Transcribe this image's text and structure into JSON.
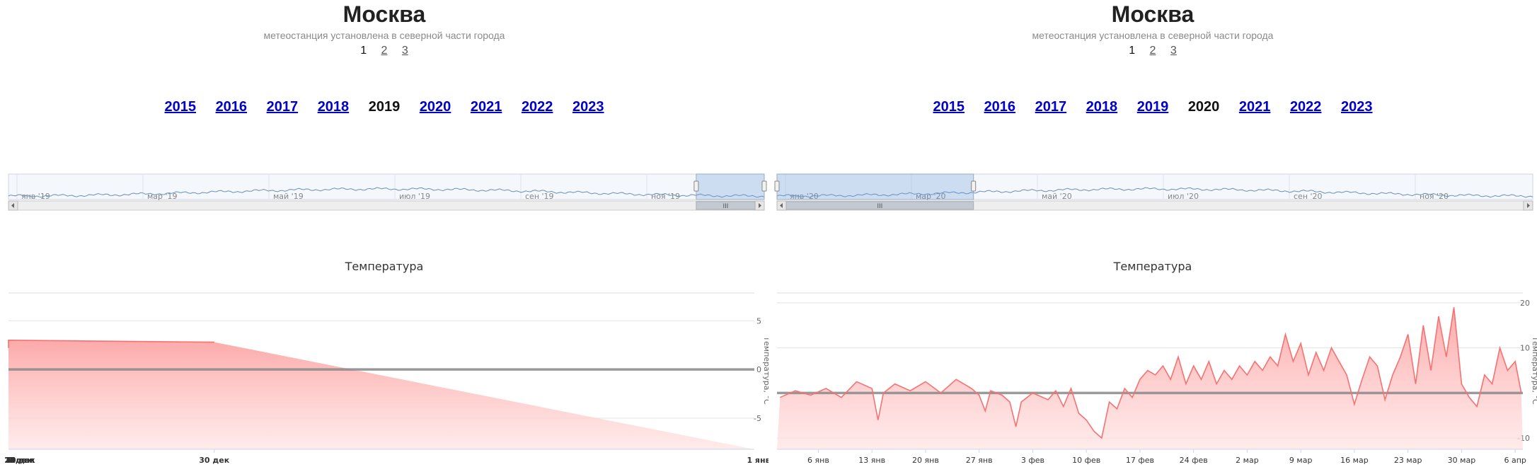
{
  "panels": [
    {
      "city": "Москва",
      "subtitle": "метеостанция установлена в северной части города",
      "pager": [
        {
          "label": "1",
          "active": true
        },
        {
          "label": "2",
          "active": false
        },
        {
          "label": "3",
          "active": false
        }
      ],
      "years": [
        {
          "label": "2015",
          "active": false
        },
        {
          "label": "2016",
          "active": false
        },
        {
          "label": "2017",
          "active": false
        },
        {
          "label": "2018",
          "active": false
        },
        {
          "label": "2019",
          "active": true
        },
        {
          "label": "2020",
          "active": false
        },
        {
          "label": "2021",
          "active": false
        },
        {
          "label": "2022",
          "active": false
        },
        {
          "label": "2023",
          "active": false
        }
      ],
      "navigator": {
        "labels": [
          "янв '19",
          "мар '19",
          "май '19",
          "июл '19",
          "сен '19",
          "ноя '19"
        ],
        "selection_fraction": [
          0.91,
          1.0
        ],
        "handle_label": "III"
      },
      "chart_data": {
        "type": "area",
        "title": "Температура",
        "ylabel": "Температура, °C",
        "ylim": [
          -8.2,
          8.0
        ],
        "yticks": [
          5,
          0,
          -5
        ],
        "x_tick_labels": [
          "30 ноя",
          "2 дек",
          "4 дек",
          "6 дек",
          "8 дек",
          "10 дек",
          "12 дек",
          "14 дек",
          "16 дек",
          "18 дек",
          "20 дек",
          "22 дек",
          "24 дек",
          "26 дек",
          "28 дек",
          "30 дек",
          "1 янв"
        ],
        "x_range_days": [
          29.6,
          31.05
        ],
        "x_tick_days": [
          0,
          2,
          4,
          6,
          8,
          10,
          12,
          14,
          16,
          18,
          20,
          22,
          24,
          26,
          28,
          30,
          32
        ],
        "series": [
          {
            "color": "#f87171",
            "points": [
              [
                -0.4,
                1.8
              ],
              [
                0.0,
                3.0
              ],
              [
                0.3,
                2.6
              ],
              [
                0.6,
                1.4
              ],
              [
                0.9,
                3.4
              ],
              [
                1.2,
                4.0
              ],
              [
                1.5,
                2.2
              ],
              [
                1.7,
                -0.5
              ],
              [
                2.0,
                -2.0
              ],
              [
                2.3,
                -2.5
              ],
              [
                2.6,
                -1.8
              ],
              [
                2.9,
                -4.0
              ],
              [
                3.2,
                -4.8
              ],
              [
                3.4,
                -6.0
              ],
              [
                3.6,
                -3.0
              ],
              [
                4.0,
                -2.8
              ],
              [
                4.4,
                -2.8
              ],
              [
                4.8,
                -2.2
              ],
              [
                5.1,
                -1.8
              ],
              [
                5.3,
                -0.5
              ],
              [
                5.6,
                1.0
              ],
              [
                5.9,
                2.5
              ],
              [
                6.2,
                3.5
              ],
              [
                6.5,
                3.0
              ],
              [
                6.8,
                2.0
              ],
              [
                7.1,
                2.5
              ],
              [
                7.4,
                1.2
              ],
              [
                7.7,
                1.5
              ],
              [
                8.0,
                2.8
              ],
              [
                8.3,
                2.0
              ],
              [
                8.6,
                2.6
              ],
              [
                8.9,
                5.0
              ],
              [
                9.2,
                4.0
              ],
              [
                9.5,
                5.0
              ],
              [
                9.8,
                3.2
              ],
              [
                10.1,
                5.0
              ],
              [
                10.4,
                3.8
              ],
              [
                10.7,
                4.8
              ],
              [
                11.0,
                2.2
              ],
              [
                11.3,
                2.8
              ],
              [
                11.6,
                0.5
              ],
              [
                11.9,
                1.6
              ],
              [
                12.2,
                2.5
              ],
              [
                12.5,
                3.5
              ],
              [
                12.8,
                1.8
              ],
              [
                13.1,
                2.2
              ],
              [
                13.4,
                1.0
              ],
              [
                13.7,
                0.0
              ],
              [
                14.0,
                -1.2
              ],
              [
                14.3,
                -0.5
              ],
              [
                14.6,
                0.8
              ],
              [
                14.9,
                2.5
              ],
              [
                15.2,
                3.5
              ],
              [
                15.5,
                3.0
              ],
              [
                15.8,
                1.8
              ],
              [
                16.1,
                2.6
              ],
              [
                16.4,
                4.0
              ],
              [
                16.7,
                6.0
              ],
              [
                17.0,
                4.5
              ],
              [
                17.3,
                5.2
              ],
              [
                17.6,
                3.0
              ],
              [
                17.9,
                2.8
              ],
              [
                18.2,
                1.2
              ],
              [
                18.5,
                -0.2
              ],
              [
                18.8,
                1.5
              ],
              [
                19.1,
                2.5
              ],
              [
                19.4,
                3.2
              ],
              [
                19.7,
                1.5
              ],
              [
                20.0,
                2.6
              ],
              [
                20.3,
                3.8
              ],
              [
                20.6,
                4.0
              ],
              [
                20.9,
                5.2
              ],
              [
                21.2,
                6.0
              ],
              [
                21.5,
                8.0
              ],
              [
                21.8,
                5.5
              ],
              [
                22.1,
                1.8
              ],
              [
                22.4,
                1.0
              ],
              [
                22.8,
                1.0
              ],
              [
                23.2,
                1.0
              ],
              [
                23.6,
                0.5
              ],
              [
                24.0,
                0.2
              ],
              [
                24.4,
                0.0
              ],
              [
                24.8,
                -0.8
              ],
              [
                25.2,
                -1.5
              ],
              [
                25.6,
                -1.0
              ],
              [
                26.0,
                -2.0
              ],
              [
                26.4,
                -2.6
              ],
              [
                26.8,
                -3.0
              ],
              [
                27.2,
                -2.6
              ],
              [
                27.6,
                -1.8
              ],
              [
                28.0,
                0.0
              ],
              [
                28.4,
                1.5
              ],
              [
                28.8,
                2.5
              ],
              [
                29.2,
                2.2
              ],
              [
                29.6,
                3.0
              ],
              [
                30.0,
                2.8
              ]
            ]
          }
        ]
      }
    },
    {
      "city": "Москва",
      "subtitle": "метеостанция установлена в северной части города",
      "pager": [
        {
          "label": "1",
          "active": true
        },
        {
          "label": "2",
          "active": false
        },
        {
          "label": "3",
          "active": false
        }
      ],
      "years": [
        {
          "label": "2015",
          "active": false
        },
        {
          "label": "2016",
          "active": false
        },
        {
          "label": "2017",
          "active": false
        },
        {
          "label": "2018",
          "active": false
        },
        {
          "label": "2019",
          "active": false
        },
        {
          "label": "2020",
          "active": true
        },
        {
          "label": "2021",
          "active": false
        },
        {
          "label": "2022",
          "active": false
        },
        {
          "label": "2023",
          "active": false
        }
      ],
      "navigator": {
        "labels": [
          "янв '20",
          "мар '20",
          "май '20",
          "июл '20",
          "сен '20",
          "ноя '20"
        ],
        "selection_fraction": [
          0.0,
          0.26
        ],
        "handle_label": "III"
      },
      "chart_data": {
        "type": "area",
        "title": "Температура",
        "ylabel": "Температура, °C",
        "ylim": [
          -12.5,
          22.5
        ],
        "yticks": [
          20,
          10,
          -10
        ],
        "x_tick_labels": [
          "6 янв",
          "13 янв",
          "20 янв",
          "27 янв",
          "3 фев",
          "10 фев",
          "17 фев",
          "24 фев",
          "2 мар",
          "9 мар",
          "16 мар",
          "23 мар",
          "30 мар",
          "6 апр"
        ],
        "x_range_days": [
          -0.4,
          97
        ],
        "x_tick_days": [
          5,
          12,
          19,
          26,
          33,
          40,
          47,
          54,
          61,
          68,
          75,
          82,
          89,
          96
        ],
        "series": [
          {
            "color": "#f87171",
            "points": [
              [
                0,
                -1.0
              ],
              [
                2,
                0.5
              ],
              [
                4,
                -0.5
              ],
              [
                6,
                1.0
              ],
              [
                8,
                -1.0
              ],
              [
                10,
                2.5
              ],
              [
                12,
                1.0
              ],
              [
                12.8,
                -6.0
              ],
              [
                13.5,
                0.0
              ],
              [
                15,
                2.0
              ],
              [
                17,
                0.5
              ],
              [
                19,
                2.5
              ],
              [
                21,
                0.0
              ],
              [
                23,
                3.0
              ],
              [
                25,
                1.0
              ],
              [
                26,
                -0.5
              ],
              [
                26.8,
                -4.0
              ],
              [
                27.5,
                0.5
              ],
              [
                29,
                -0.5
              ],
              [
                30,
                -2.0
              ],
              [
                30.8,
                -7.5
              ],
              [
                31.5,
                -2.0
              ],
              [
                33,
                0.0
              ],
              [
                35,
                -1.5
              ],
              [
                36,
                0.5
              ],
              [
                37,
                -3.0
              ],
              [
                38,
                1.0
              ],
              [
                39,
                -4.5
              ],
              [
                40,
                -6.0
              ],
              [
                41,
                -8.5
              ],
              [
                42,
                -10.0
              ],
              [
                43,
                -2.0
              ],
              [
                44,
                -3.5
              ],
              [
                45,
                1.0
              ],
              [
                46,
                -1.0
              ],
              [
                47,
                3.0
              ],
              [
                48,
                5.0
              ],
              [
                49,
                4.0
              ],
              [
                50,
                6.0
              ],
              [
                51,
                3.0
              ],
              [
                52,
                8.0
              ],
              [
                53,
                2.0
              ],
              [
                54,
                6.0
              ],
              [
                55,
                3.0
              ],
              [
                56,
                7.0
              ],
              [
                57,
                2.0
              ],
              [
                58,
                5.0
              ],
              [
                59,
                3.0
              ],
              [
                60,
                6.0
              ],
              [
                61,
                4.0
              ],
              [
                62,
                7.0
              ],
              [
                63,
                5.0
              ],
              [
                64,
                8.0
              ],
              [
                65,
                6.0
              ],
              [
                66,
                13.0
              ],
              [
                67,
                7.0
              ],
              [
                68,
                11.0
              ],
              [
                69,
                4.0
              ],
              [
                70,
                9.0
              ],
              [
                71,
                5.0
              ],
              [
                72,
                10.0
              ],
              [
                73,
                7.0
              ],
              [
                74,
                4.0
              ],
              [
                75,
                -2.5
              ],
              [
                76,
                3.0
              ],
              [
                77,
                8.0
              ],
              [
                78,
                6.0
              ],
              [
                79,
                -1.5
              ],
              [
                80,
                4.0
              ],
              [
                81,
                8.0
              ],
              [
                82,
                13.0
              ],
              [
                83,
                2.0
              ],
              [
                84,
                15.0
              ],
              [
                85,
                5.0
              ],
              [
                86,
                17.0
              ],
              [
                87,
                8.0
              ],
              [
                88,
                19.0
              ],
              [
                89,
                2.0
              ],
              [
                90,
                -1.0
              ],
              [
                91,
                -3.0
              ],
              [
                92,
                4.0
              ],
              [
                93,
                2.0
              ],
              [
                94,
                10.0
              ],
              [
                95,
                5.0
              ],
              [
                96,
                7.0
              ],
              [
                96.8,
                0.0
              ]
            ]
          }
        ]
      }
    }
  ]
}
